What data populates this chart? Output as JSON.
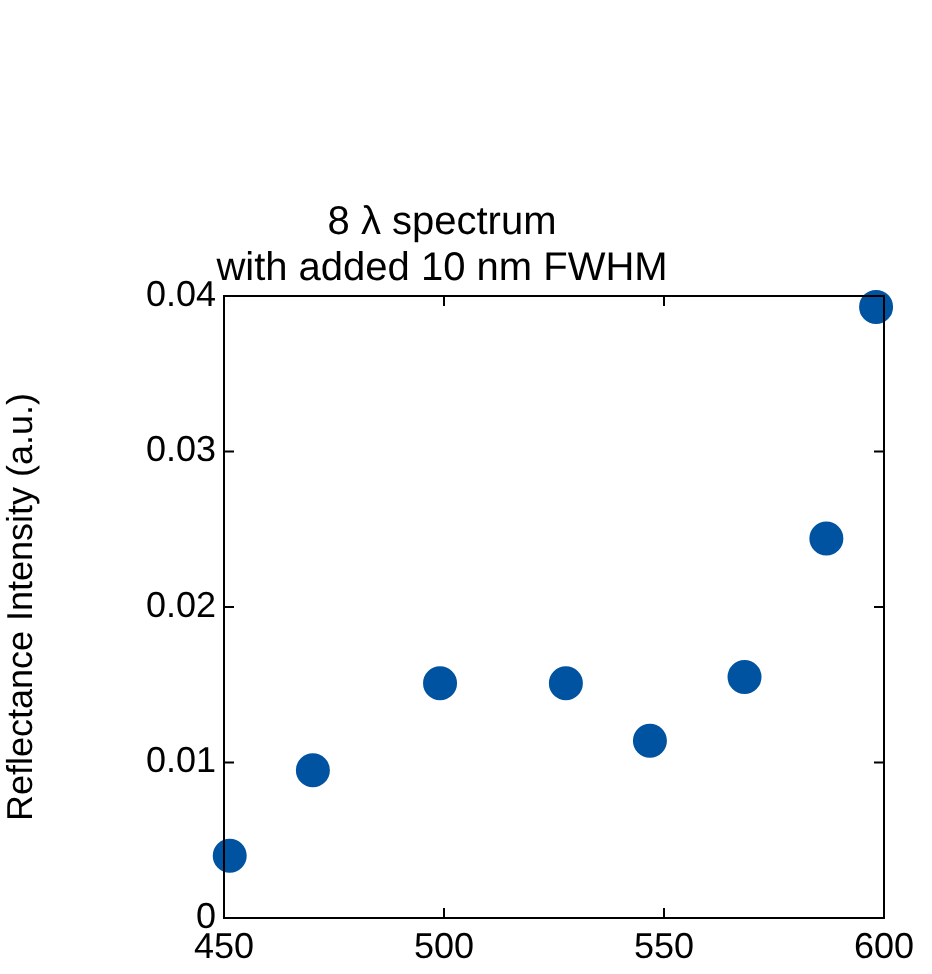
{
  "chart_data": {
    "type": "scatter",
    "title": [
      "8 λ spectrum",
      "with added 10 nm FWHM"
    ],
    "ylabel": "Reflectance Intensity (a.u.)",
    "x": [
      451.3,
      470.2,
      499.1,
      527.7,
      546.8,
      568.3,
      586.9,
      598.2
    ],
    "values": [
      0.004,
      0.0095,
      0.0151,
      0.0151,
      0.0114,
      0.0155,
      0.0244,
      0.0393
    ],
    "color": "#0053a0",
    "marker": "circle",
    "grid": false,
    "xlim": [
      450,
      600
    ],
    "xticks": [
      450,
      500,
      550,
      600
    ],
    "ylim": [
      0,
      0.04
    ],
    "yticks": [
      0,
      0.01,
      0.02,
      0.03,
      0.04
    ]
  }
}
